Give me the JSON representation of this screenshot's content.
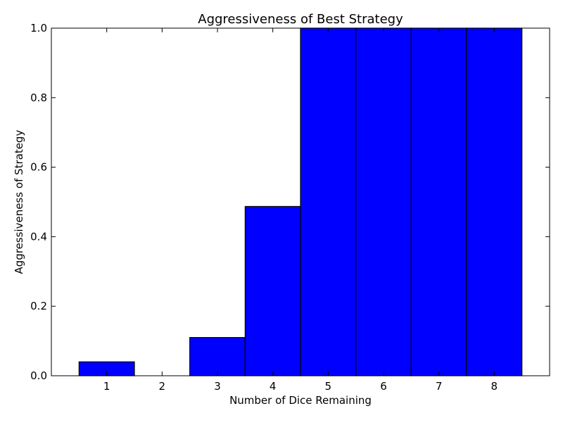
{
  "chart_data": {
    "type": "bar",
    "title": "Aggressiveness of Best Strategy",
    "xlabel": "Number of Dice Remaining",
    "ylabel": "Aggressiveness of Strategy",
    "categories": [
      "1",
      "2",
      "3",
      "4",
      "5",
      "6",
      "7",
      "8"
    ],
    "x": [
      1,
      2,
      3,
      4,
      5,
      6,
      7,
      8
    ],
    "values": [
      0.04,
      0.0,
      0.11,
      0.487,
      1.0,
      1.0,
      1.0,
      1.0
    ],
    "xlim": [
      0,
      9
    ],
    "ylim": [
      0.0,
      1.0
    ],
    "yticks": [
      "0.0",
      "0.2",
      "0.4",
      "0.6",
      "0.8",
      "1.0"
    ],
    "grid": false,
    "bar_color": "#0000ff",
    "edge_color": "#000000"
  }
}
